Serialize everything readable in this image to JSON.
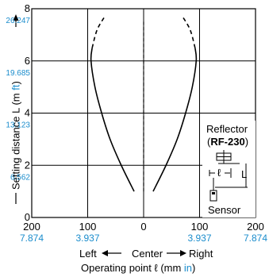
{
  "chart_data": {
    "type": "line",
    "ylabel": "Setting distance L (m ft)",
    "ylabel_prefix": "Setting distance L (m ",
    "ylabel_unit_in": "ft",
    "ylabel_suffix": ")",
    "xlabel_prefix": "Operating point ℓ (mm ",
    "xlabel_unit_in": "in",
    "xlabel_suffix": ")",
    "direction_left": "Left",
    "direction_center": "Center",
    "direction_right": "Right",
    "xlim": [
      -200,
      200
    ],
    "ylim": [
      0,
      8
    ],
    "x_ticks": [
      {
        "value": -200,
        "label": "200",
        "sub": "7.874"
      },
      {
        "value": -100,
        "label": "100",
        "sub": "3.937"
      },
      {
        "value": 0,
        "label": "0",
        "sub": ""
      },
      {
        "value": 100,
        "label": "100",
        "sub": "3.937"
      },
      {
        "value": 200,
        "label": "200",
        "sub": "7.874"
      }
    ],
    "y_ticks": [
      {
        "value": 0,
        "label": "0",
        "sub": ""
      },
      {
        "value": 2,
        "label": "2",
        "sub": "6.562"
      },
      {
        "value": 4,
        "label": "4",
        "sub": "13.123"
      },
      {
        "value": 6,
        "label": "6",
        "sub": "19.685"
      },
      {
        "value": 8,
        "label": "8",
        "sub": "26.247"
      }
    ],
    "grid": true,
    "series": [
      {
        "side": "left",
        "solid": [
          [
            -17,
            1.0
          ],
          [
            -40,
            2.0
          ],
          [
            -60,
            3.0
          ],
          [
            -75,
            4.0
          ],
          [
            -87,
            5.0
          ],
          [
            -94,
            6.0
          ],
          [
            -92,
            6.5
          ]
        ],
        "dashed": [
          [
            -92,
            6.5
          ],
          [
            -83,
            7.2
          ],
          [
            -68,
            7.75
          ]
        ]
      },
      {
        "side": "right",
        "solid": [
          [
            17,
            1.0
          ],
          [
            40,
            2.0
          ],
          [
            60,
            3.0
          ],
          [
            75,
            4.0
          ],
          [
            87,
            5.0
          ],
          [
            94,
            6.0
          ],
          [
            92,
            6.5
          ]
        ],
        "dashed": [
          [
            92,
            6.5
          ],
          [
            83,
            7.2
          ],
          [
            68,
            7.75
          ]
        ]
      }
    ],
    "center_dash": {
      "x": 0,
      "y_from": 1.0,
      "y_to": 7.5
    },
    "inset": {
      "reflector_label": "Reflector",
      "model_label": "RF-230",
      "model_prefix": "(",
      "model_suffix": ")",
      "ell_label": "ℓ",
      "L_label": "L",
      "sensor_label": "Sensor"
    },
    "colors": {
      "line": "#000000",
      "unit": "#1a8ccc",
      "grid": "#000000"
    }
  }
}
